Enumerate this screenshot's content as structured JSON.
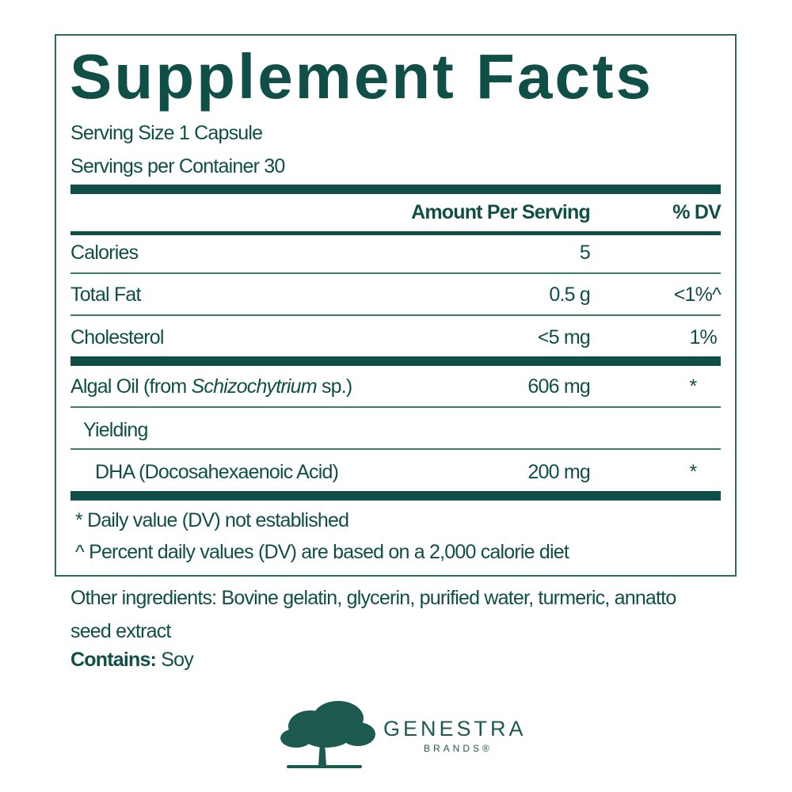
{
  "title": "Supplement Facts",
  "serving_size": "Serving Size 1 Capsule",
  "servings_per_container": "Servings per Container 30",
  "header": {
    "amount": "Amount Per Serving",
    "dv": "% DV"
  },
  "rows": [
    {
      "name": "Calories",
      "amount": "5",
      "dv": ""
    },
    {
      "name": "Total Fat",
      "amount": "0.5 g",
      "dv": "<1%^"
    },
    {
      "name": "Cholesterol",
      "amount": "<5 mg",
      "dv": "1%"
    },
    {
      "name_prefix": "Algal Oil (from ",
      "name_italic": "Schizochytrium",
      "name_suffix": " sp.)",
      "amount": "606 mg",
      "dv": "*"
    },
    {
      "name": "Yielding",
      "amount": "",
      "dv": ""
    },
    {
      "name": "DHA (Docosahexaenoic Acid)",
      "amount": "200 mg",
      "dv": "*"
    }
  ],
  "footnotes": [
    "* Daily value (DV) not established",
    "^ Percent daily values (DV) are based on a 2,000 calorie diet"
  ],
  "other_ingredients_line1": "Other ingredients: Bovine gelatin, glycerin, purified water, turmeric, annatto",
  "other_ingredients_line2": "seed extract",
  "contains_label": "Contains:",
  "contains_value": " Soy",
  "brand": {
    "name": "GENESTRA",
    "sub": "BRANDS®",
    "color": "#0f4f47"
  }
}
